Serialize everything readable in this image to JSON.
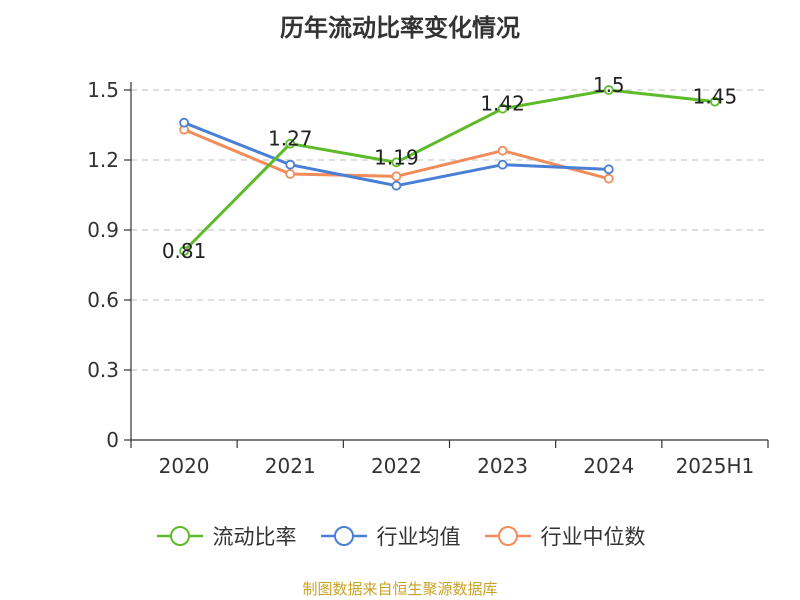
{
  "title": "历年流动比率变化情况",
  "source_note": "制图数据来自恒生聚源数据库",
  "chart_data": {
    "type": "line",
    "title": "历年流动比率变化情况",
    "categories": [
      "2020",
      "2021",
      "2022",
      "2023",
      "2024",
      "2025H1"
    ],
    "y_ticks": [
      "0",
      "0.3",
      "0.6",
      "0.9",
      "1.2",
      "1.5"
    ],
    "ylim": [
      0,
      1.5
    ],
    "grid": true,
    "legend_position": "bottom",
    "xlabel": "",
    "ylabel": "",
    "series": [
      {
        "name": "流动比率",
        "color": "#5dbb2a",
        "values": [
          0.81,
          1.27,
          1.19,
          1.42,
          1.5,
          1.45
        ],
        "labels": [
          "0.81",
          "1.27",
          "1.19",
          "1.42",
          "1.5",
          "1.45"
        ]
      },
      {
        "name": "行业均值",
        "color": "#4a7fd6",
        "values": [
          1.36,
          1.18,
          1.09,
          1.18,
          1.16,
          null
        ]
      },
      {
        "name": "行业中位数",
        "color": "#f28c5a",
        "values": [
          1.33,
          1.14,
          1.13,
          1.24,
          1.12,
          null
        ]
      }
    ]
  }
}
